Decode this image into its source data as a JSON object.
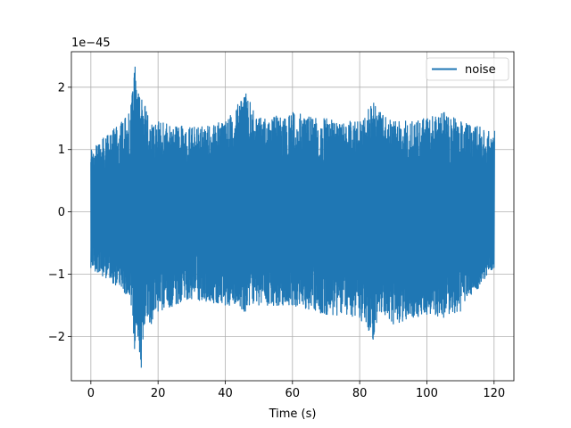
{
  "chart_data": {
    "type": "line",
    "title": "",
    "xlabel": "Time (s)",
    "ylabel": "",
    "xlim": [
      -5.8,
      125.9
    ],
    "ylim": [
      -2.71,
      2.57
    ],
    "y_scale_label": "1e−45",
    "x_ticks": [
      0,
      20,
      40,
      60,
      80,
      100,
      120
    ],
    "x_tick_labels": [
      "0",
      "20",
      "40",
      "60",
      "80",
      "100",
      "120"
    ],
    "y_ticks": [
      -2,
      -1,
      0,
      1,
      2
    ],
    "y_tick_labels": [
      "−2",
      "−1",
      "0",
      "1",
      "2"
    ],
    "grid": true,
    "legend_position": "top-right",
    "series": [
      {
        "name": "noise",
        "color": "#1f77b4",
        "x_range": [
          0,
          120
        ],
        "envelope": {
          "x": [
            0,
            10,
            12,
            13,
            14,
            15,
            16,
            18,
            20,
            30,
            40,
            46,
            50,
            60,
            70,
            80,
            84,
            86,
            90,
            100,
            105,
            110,
            120
          ],
          "upper": [
            1.0,
            1.5,
            1.75,
            2.33,
            1.9,
            1.8,
            1.7,
            1.4,
            1.45,
            1.35,
            1.45,
            1.9,
            1.5,
            1.6,
            1.5,
            1.45,
            1.75,
            1.6,
            1.45,
            1.5,
            1.6,
            1.45,
            1.3
          ],
          "lower": [
            -0.9,
            -1.3,
            -1.5,
            -2.2,
            -2.0,
            -2.5,
            -1.8,
            -1.8,
            -1.6,
            -1.4,
            -1.5,
            -1.6,
            -1.5,
            -1.5,
            -1.65,
            -1.7,
            -2.05,
            -1.6,
            -1.8,
            -1.65,
            -1.7,
            -1.6,
            -0.9
          ]
        }
      }
    ]
  }
}
